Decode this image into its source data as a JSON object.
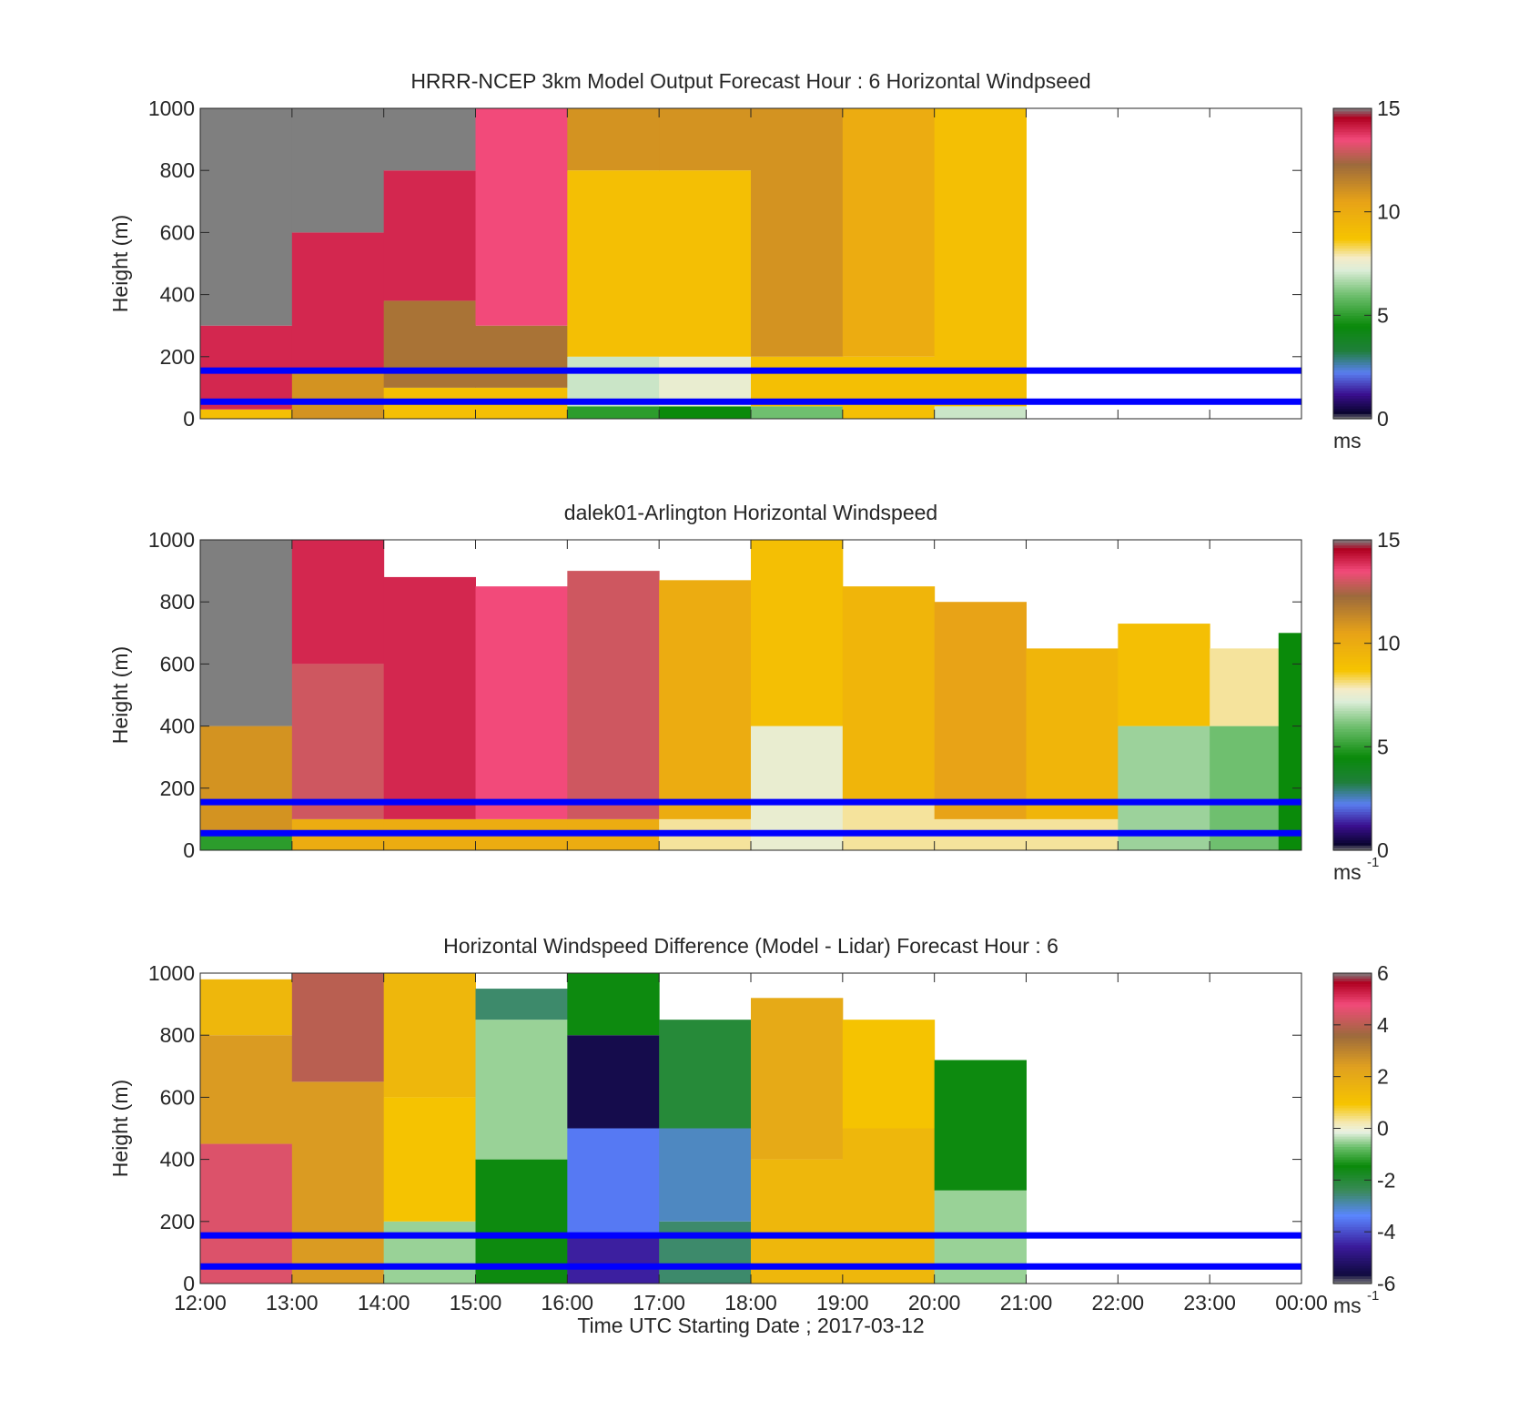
{
  "figure": {
    "xlabel": "Time UTC  Starting Date ; 2017-03-12",
    "x_tick_labels": [
      "12:00",
      "13:00",
      "14:00",
      "15:00",
      "16:00",
      "17:00",
      "18:00",
      "19:00",
      "20:00",
      "21:00",
      "22:00",
      "23:00",
      "00:00"
    ],
    "colors": {
      "reference_lines": "#0000ff",
      "axes": "#262626",
      "missing": "#ffffff"
    }
  },
  "chart_data": [
    {
      "type": "heatmap",
      "title": "HRRR-NCEP 3km Model Output   Forecast Hour : 6 Horizontal Windpseed",
      "ylabel": "Height (m)",
      "xlim": [
        "12:00",
        "00:00"
      ],
      "ylim": [
        0,
        1000
      ],
      "y_ticks": [
        "0",
        "200",
        "400",
        "600",
        "800",
        "1000"
      ],
      "colorbar": {
        "range": [
          0,
          15
        ],
        "ticks": [
          "0",
          "5",
          "10",
          "15"
        ],
        "unit": "ms",
        "unit_sup": ""
      },
      "reference_lines_m": [
        155,
        55
      ],
      "columns": [
        {
          "time": "12:00",
          "segments": [
            {
              "from": 0,
              "to": 30,
              "v": 9
            },
            {
              "from": 30,
              "to": 300,
              "v": 14
            },
            {
              "from": 300,
              "to": 1000,
              "v": 16
            }
          ]
        },
        {
          "time": "13:00",
          "segments": [
            {
              "from": 0,
              "to": 150,
              "v": 11
            },
            {
              "from": 150,
              "to": 600,
              "v": 14
            },
            {
              "from": 600,
              "to": 1000,
              "v": 16
            }
          ]
        },
        {
          "time": "14:00",
          "segments": [
            {
              "from": 0,
              "to": 100,
              "v": 9
            },
            {
              "from": 100,
              "to": 380,
              "v": 12
            },
            {
              "from": 380,
              "to": 800,
              "v": 14
            },
            {
              "from": 800,
              "to": 1000,
              "v": 16
            }
          ]
        },
        {
          "time": "15:00",
          "segments": [
            {
              "from": 0,
              "to": 100,
              "v": 9
            },
            {
              "from": 100,
              "to": 300,
              "v": 12
            },
            {
              "from": 300,
              "to": 1000,
              "v": 13.5
            }
          ]
        },
        {
          "time": "16:00",
          "segments": [
            {
              "from": 0,
              "to": 40,
              "v": 5
            },
            {
              "from": 40,
              "to": 200,
              "v": 7
            },
            {
              "from": 200,
              "to": 800,
              "v": 9
            },
            {
              "from": 800,
              "to": 1000,
              "v": 11
            }
          ]
        },
        {
          "time": "17:00",
          "segments": [
            {
              "from": 0,
              "to": 40,
              "v": 4.5
            },
            {
              "from": 40,
              "to": 200,
              "v": 7.5
            },
            {
              "from": 200,
              "to": 800,
              "v": 9
            },
            {
              "from": 800,
              "to": 1000,
              "v": 11
            }
          ]
        },
        {
          "time": "18:00",
          "segments": [
            {
              "from": 0,
              "to": 40,
              "v": 6
            },
            {
              "from": 40,
              "to": 200,
              "v": 9
            },
            {
              "from": 200,
              "to": 1000,
              "v": 11
            }
          ]
        },
        {
          "time": "19:00",
          "segments": [
            {
              "from": 0,
              "to": 200,
              "v": 9
            },
            {
              "from": 200,
              "to": 1000,
              "v": 10
            }
          ]
        },
        {
          "time": "20:00",
          "segments": [
            {
              "from": 0,
              "to": 40,
              "v": 7
            },
            {
              "from": 40,
              "to": 1000,
              "v": 9
            }
          ]
        }
      ]
    },
    {
      "type": "heatmap",
      "title": "dalek01-Arlington  Horizontal Windspeed",
      "ylabel": "Height (m)",
      "xlim": [
        "12:00",
        "00:00"
      ],
      "ylim": [
        0,
        1000
      ],
      "y_ticks": [
        "0",
        "200",
        "400",
        "600",
        "800",
        "1000"
      ],
      "colorbar": {
        "range": [
          0,
          15
        ],
        "ticks": [
          "0",
          "5",
          "10",
          "15"
        ],
        "unit": "ms",
        "unit_sup": "-1"
      },
      "reference_lines_m": [
        155,
        55
      ],
      "columns": [
        {
          "time": "12:00",
          "segments": [
            {
              "from": 0,
              "to": 60,
              "v": 5
            },
            {
              "from": 60,
              "to": 400,
              "v": 11
            },
            {
              "from": 400,
              "to": 1000,
              "v": 16
            }
          ]
        },
        {
          "time": "13:00",
          "segments": [
            {
              "from": 0,
              "to": 100,
              "v": 10
            },
            {
              "from": 100,
              "to": 600,
              "v": 13
            },
            {
              "from": 600,
              "to": 1000,
              "v": 14
            }
          ]
        },
        {
          "time": "14:00",
          "segments": [
            {
              "from": 0,
              "to": 100,
              "v": 10
            },
            {
              "from": 100,
              "to": 880,
              "v": 14
            }
          ]
        },
        {
          "time": "15:00",
          "segments": [
            {
              "from": 0,
              "to": 100,
              "v": 10
            },
            {
              "from": 100,
              "to": 850,
              "v": 13.5
            }
          ]
        },
        {
          "time": "16:00",
          "segments": [
            {
              "from": 0,
              "to": 100,
              "v": 10
            },
            {
              "from": 100,
              "to": 900,
              "v": 13
            }
          ]
        },
        {
          "time": "17:00",
          "segments": [
            {
              "from": 0,
              "to": 100,
              "v": 8
            },
            {
              "from": 100,
              "to": 870,
              "v": 10
            }
          ]
        },
        {
          "time": "18:00",
          "segments": [
            {
              "from": 0,
              "to": 400,
              "v": 7.5
            },
            {
              "from": 400,
              "to": 1000,
              "v": 9
            }
          ]
        },
        {
          "time": "19:00",
          "segments": [
            {
              "from": 0,
              "to": 150,
              "v": 8
            },
            {
              "from": 150,
              "to": 850,
              "v": 9.5
            }
          ]
        },
        {
          "time": "20:00",
          "segments": [
            {
              "from": 0,
              "to": 100,
              "v": 8
            },
            {
              "from": 100,
              "to": 800,
              "v": 10.5
            }
          ]
        },
        {
          "time": "21:00",
          "segments": [
            {
              "from": 0,
              "to": 100,
              "v": 8
            },
            {
              "from": 100,
              "to": 650,
              "v": 9.5
            }
          ]
        },
        {
          "time": "22:00",
          "segments": [
            {
              "from": 0,
              "to": 400,
              "v": 6.5
            },
            {
              "from": 400,
              "to": 730,
              "v": 9
            }
          ]
        },
        {
          "time": "23:00",
          "segments": [
            {
              "from": 0,
              "to": 400,
              "v": 6
            },
            {
              "from": 400,
              "to": 650,
              "v": 8
            }
          ]
        },
        {
          "time": "23:45",
          "segments": [
            {
              "from": 0,
              "to": 700,
              "v": 4.5
            }
          ]
        }
      ]
    },
    {
      "type": "heatmap",
      "title": "Horizontal Windspeed Difference (Model - Lidar) Forecast Hour : 6",
      "ylabel": "Height (m)",
      "xlim": [
        "12:00",
        "00:00"
      ],
      "ylim": [
        0,
        1000
      ],
      "y_ticks": [
        "0",
        "200",
        "400",
        "600",
        "800",
        "1000"
      ],
      "colorbar": {
        "range": [
          -6,
          6
        ],
        "ticks": [
          "-6",
          "-4",
          "-2",
          "0",
          "2",
          "4",
          "6"
        ],
        "unit": "ms",
        "unit_sup": "-1"
      },
      "reference_lines_m": [
        155,
        55
      ],
      "columns": [
        {
          "time": "12:00",
          "segments": [
            {
              "from": 0,
              "to": 450,
              "v": 4.5
            },
            {
              "from": 450,
              "to": 800,
              "v": 2.5
            },
            {
              "from": 800,
              "to": 980,
              "v": 1.5
            }
          ]
        },
        {
          "time": "13:00",
          "segments": [
            {
              "from": 0,
              "to": 650,
              "v": 2.5
            },
            {
              "from": 650,
              "to": 1000,
              "v": 4
            }
          ]
        },
        {
          "time": "14:00",
          "segments": [
            {
              "from": 0,
              "to": 200,
              "v": -0.5
            },
            {
              "from": 200,
              "to": 600,
              "v": 1
            },
            {
              "from": 600,
              "to": 1000,
              "v": 1.5
            }
          ]
        },
        {
          "time": "15:00",
          "segments": [
            {
              "from": 0,
              "to": 400,
              "v": -1.5
            },
            {
              "from": 400,
              "to": 850,
              "v": -0.5
            },
            {
              "from": 850,
              "to": 950,
              "v": -2.5
            }
          ]
        },
        {
          "time": "16:00",
          "segments": [
            {
              "from": 0,
              "to": 150,
              "v": -4.5
            },
            {
              "from": 150,
              "to": 500,
              "v": -3.5
            },
            {
              "from": 500,
              "to": 800,
              "v": -5.5
            },
            {
              "from": 800,
              "to": 1000,
              "v": -1.5
            }
          ]
        },
        {
          "time": "17:00",
          "segments": [
            {
              "from": 0,
              "to": 200,
              "v": -2.5
            },
            {
              "from": 200,
              "to": 500,
              "v": -3
            },
            {
              "from": 500,
              "to": 850,
              "v": -2
            }
          ]
        },
        {
          "time": "18:00",
          "segments": [
            {
              "from": 0,
              "to": 400,
              "v": 1.5
            },
            {
              "from": 400,
              "to": 920,
              "v": 2
            }
          ]
        },
        {
          "time": "19:00",
          "segments": [
            {
              "from": 0,
              "to": 500,
              "v": 1.5
            },
            {
              "from": 500,
              "to": 850,
              "v": 1
            }
          ]
        },
        {
          "time": "20:00",
          "segments": [
            {
              "from": 0,
              "to": 300,
              "v": -0.5
            },
            {
              "from": 300,
              "to": 720,
              "v": -1.5
            }
          ]
        }
      ]
    }
  ]
}
